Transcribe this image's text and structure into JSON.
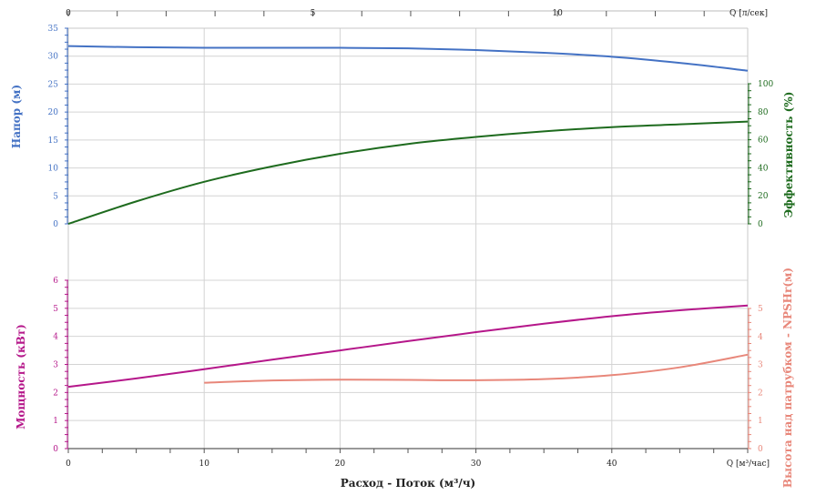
{
  "chart_data": {
    "type": "line",
    "x_axis_bottom": {
      "label": "Расход - Поток (м³/ч)",
      "unit_label": "Q [м³/час]",
      "range": [
        0,
        50
      ],
      "ticks": [
        "0",
        "10",
        "20",
        "30",
        "40"
      ]
    },
    "x_axis_top": {
      "unit_label": "Q [л/сек]",
      "range": [
        0,
        13.89
      ],
      "ticks": [
        "0",
        "5",
        "10"
      ]
    },
    "panels": [
      {
        "name": "upper",
        "left_axis": {
          "label": "Напор (м)",
          "color": "#4472c4",
          "range": [
            0,
            35
          ],
          "ticks": [
            "0",
            "5",
            "10",
            "15",
            "20",
            "25",
            "30",
            "35"
          ]
        },
        "right_axis": {
          "label": "Эффективность (%)",
          "color": "#1e6b1e",
          "range": [
            0,
            100
          ],
          "ticks": [
            "0",
            "20",
            "40",
            "60",
            "80",
            "100"
          ]
        },
        "series": [
          {
            "axis": "left",
            "color": "#4472c4",
            "x": [
              0,
              5,
              10,
              15,
              20,
              25,
              30,
              35,
              40,
              45,
              50
            ],
            "y": [
              31.8,
              31.6,
              31.5,
              31.5,
              31.5,
              31.4,
              31.1,
              30.6,
              29.9,
              28.8,
              27.4
            ]
          },
          {
            "axis": "right",
            "color": "#1e6b1e",
            "x": [
              0,
              5,
              10,
              15,
              20,
              25,
              30,
              35,
              40,
              45,
              50
            ],
            "y": [
              0,
              16,
              30,
              41,
              50,
              57,
              62,
              66,
              69,
              71,
              73
            ]
          }
        ]
      },
      {
        "name": "lower",
        "left_axis": {
          "label": "Мощность (кВт)",
          "color": "#b5178a",
          "range": [
            0,
            6
          ],
          "ticks": [
            "0",
            "1",
            "2",
            "3",
            "4",
            "5",
            "6"
          ]
        },
        "right_axis": {
          "label": "Высота над патрубком - NPSHr(м)",
          "color": "#e8877a",
          "range": [
            0,
            5
          ],
          "ticks": [
            "0",
            "1",
            "2",
            "3",
            "4",
            "5"
          ]
        },
        "series": [
          {
            "axis": "left",
            "color": "#b5178a",
            "x": [
              0,
              5,
              10,
              15,
              20,
              25,
              30,
              35,
              40,
              45,
              50
            ],
            "y": [
              2.2,
              2.5,
              2.83,
              3.17,
              3.5,
              3.83,
              4.15,
              4.45,
              4.72,
              4.93,
              5.1
            ]
          },
          {
            "axis": "right",
            "color": "#e8877a",
            "x": [
              10,
              15,
              20,
              25,
              30,
              35,
              40,
              45,
              50
            ],
            "y": [
              2.35,
              2.43,
              2.46,
              2.45,
              2.44,
              2.48,
              2.62,
              2.9,
              3.35
            ]
          }
        ]
      }
    ],
    "grid": true
  }
}
